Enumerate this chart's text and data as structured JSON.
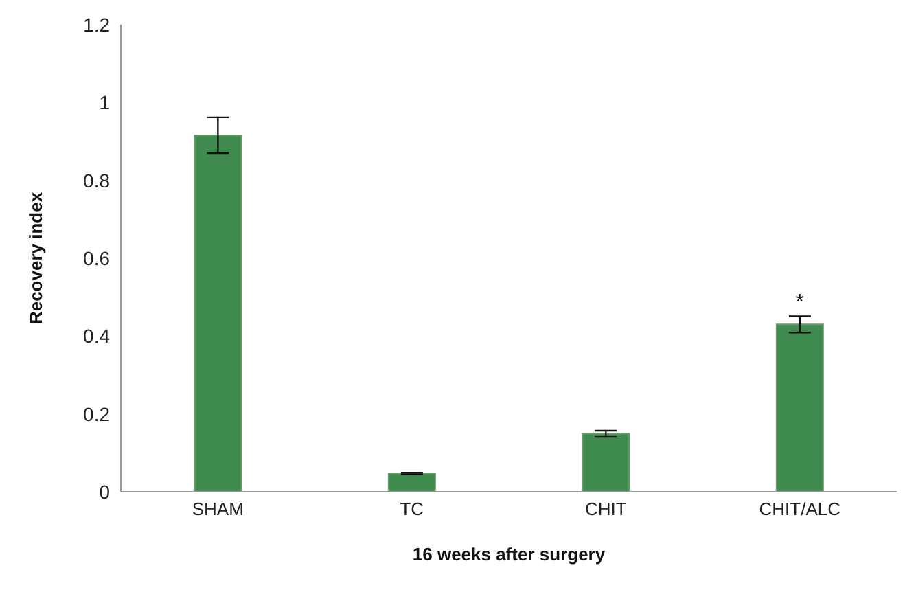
{
  "chart_data": {
    "type": "bar",
    "xlabel": "16 weeks after surgery",
    "ylabel": "Recovery index",
    "categories": [
      "SHAM",
      "TC",
      "CHIT",
      "CHIT/ALC"
    ],
    "values": [
      0.916,
      0.047,
      0.149,
      0.43
    ],
    "errors": [
      0.046,
      0.002,
      0.008,
      0.021
    ],
    "color": "#3f8a4e",
    "ylim": [
      0,
      1.2
    ],
    "yticks": [
      0,
      0.2,
      0.4,
      0.6,
      0.8,
      1,
      1.2
    ],
    "grid": false,
    "annotations": [
      {
        "text": "*",
        "x": "CHIT/ALC",
        "y": 0.451
      }
    ]
  }
}
